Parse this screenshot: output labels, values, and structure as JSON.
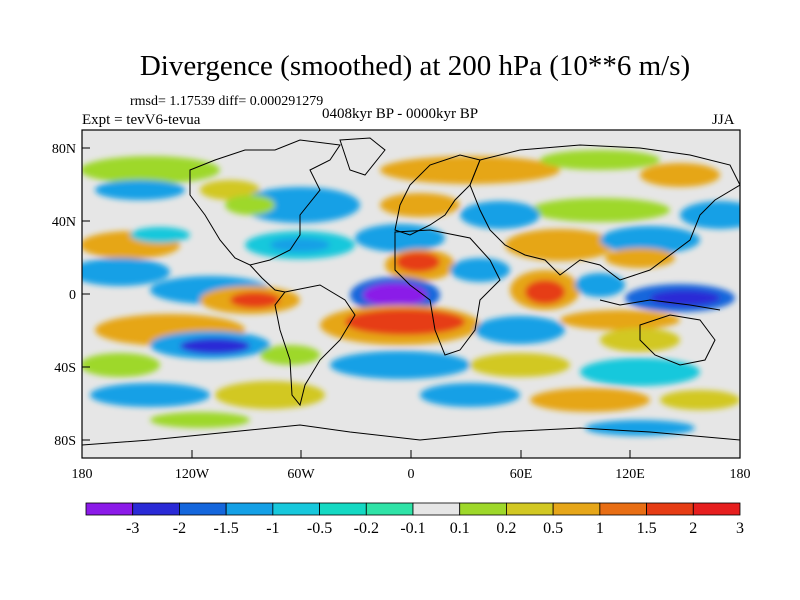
{
  "title": "Divergence (smoothed) at 200 hPa (10**6 m/s)",
  "stats_line": "rmsd= 1.17539 diff= 0.000291279",
  "left_label": "Expt = tevV6-tevua",
  "center_label": "0408kyr BP - 0000kyr BP",
  "right_label": "JJA",
  "lon_ticks": [
    "180",
    "120W",
    "60W",
    "0",
    "60E",
    "120E",
    "180"
  ],
  "lat_ticks": [
    "80N",
    "40N",
    "0",
    "40S",
    "80S"
  ],
  "colorbar": {
    "labels": [
      "-3",
      "-2",
      "-1.5",
      "-1",
      "-0.5",
      "-0.2",
      "-0.1",
      "0.1",
      "0.2",
      "0.5",
      "1",
      "1.5",
      "2",
      "3"
    ],
    "colors": [
      "#8b1ae8",
      "#2a2ad6",
      "#1466dc",
      "#14a0e6",
      "#17c8dc",
      "#14d9c3",
      "#2fe3a7",
      "#e6e6e6",
      "#9ed82a",
      "#d2c823",
      "#e6a619",
      "#e86e14",
      "#e63c14",
      "#e61e1e"
    ]
  },
  "field_colors": {
    "neutral": "#e6e6e6",
    "green": "#9ed82a",
    "yellow": "#d2c823",
    "orange": "#e6a619",
    "dark_orange": "#e86e14",
    "red": "#e63c14",
    "cyan": "#17c8dc",
    "sky": "#14a0e6",
    "blue": "#1466dc",
    "dark_blue": "#2a2ad6",
    "purple": "#8b1ae8",
    "teal": "#2fe3a7"
  }
}
